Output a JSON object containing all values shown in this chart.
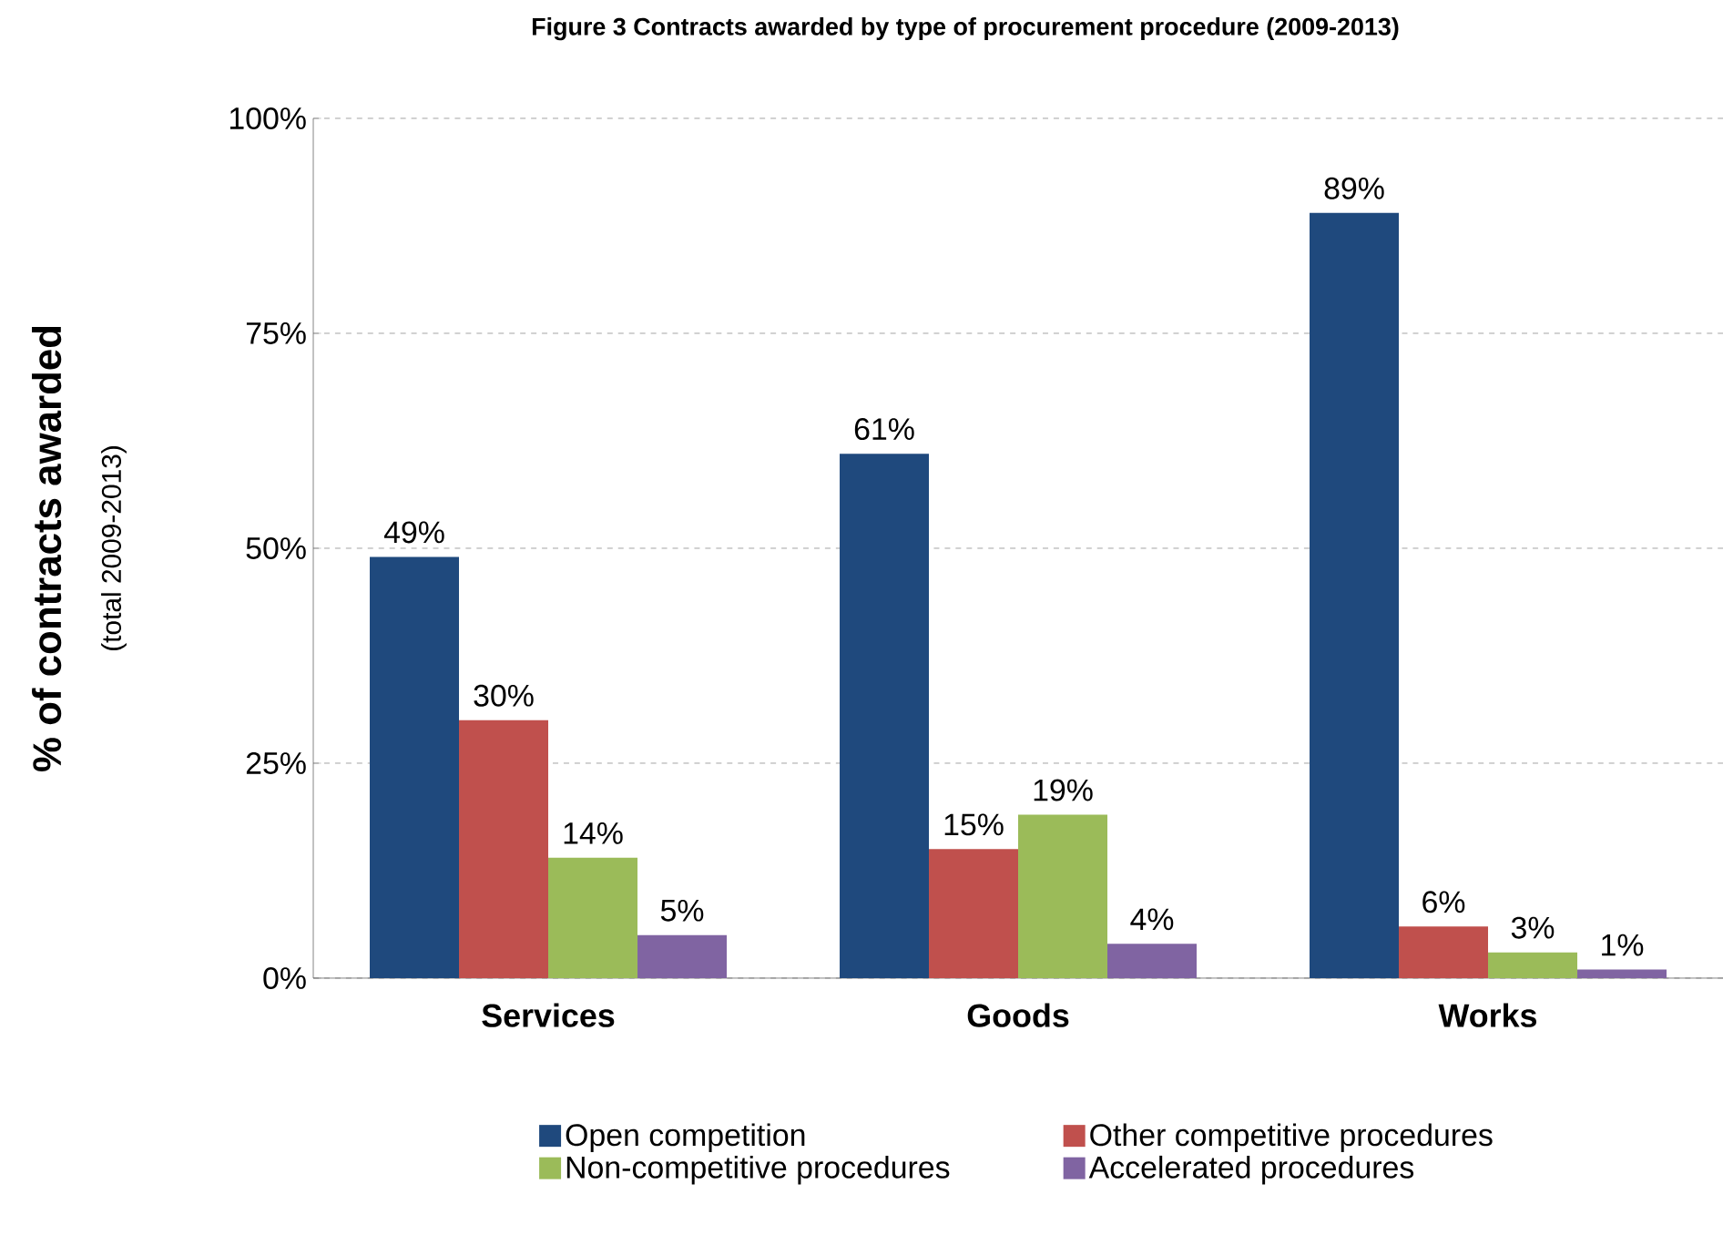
{
  "chart_data": {
    "type": "bar",
    "title": "Figure 3 Contracts awarded by type of procurement procedure (2009-2013)",
    "ylabel": "% of contracts awarded",
    "annotations": [
      "(total 2009-2013)"
    ],
    "categories": [
      "Services",
      "Goods",
      "Works"
    ],
    "series": [
      {
        "name": "Open competition",
        "color": "#1f497d",
        "values": [
          49,
          61,
          89
        ],
        "value_labels": [
          "49%",
          "61%",
          "89%"
        ]
      },
      {
        "name": "Other competitive procedures",
        "color": "#c0504d",
        "values": [
          30,
          15,
          6
        ],
        "value_labels": [
          "30%",
          "15%",
          "6%"
        ]
      },
      {
        "name": "Non-competitive procedures",
        "color": "#9bbb59",
        "values": [
          14,
          19,
          3
        ],
        "value_labels": [
          "14%",
          "19%",
          "3%"
        ]
      },
      {
        "name": "Accelerated procedures",
        "color": "#8064a2",
        "values": [
          5,
          4,
          1
        ],
        "value_labels": [
          "5%",
          "4%",
          "1%"
        ]
      }
    ],
    "ylim": [
      0,
      100
    ],
    "yticks": [
      {
        "value": 0,
        "label": "0%"
      },
      {
        "value": 25,
        "label": "25%"
      },
      {
        "value": 50,
        "label": "50%"
      },
      {
        "value": 75,
        "label": "75%"
      },
      {
        "value": 100,
        "label": "100%"
      }
    ],
    "grid": "y",
    "legend": "bottom"
  }
}
